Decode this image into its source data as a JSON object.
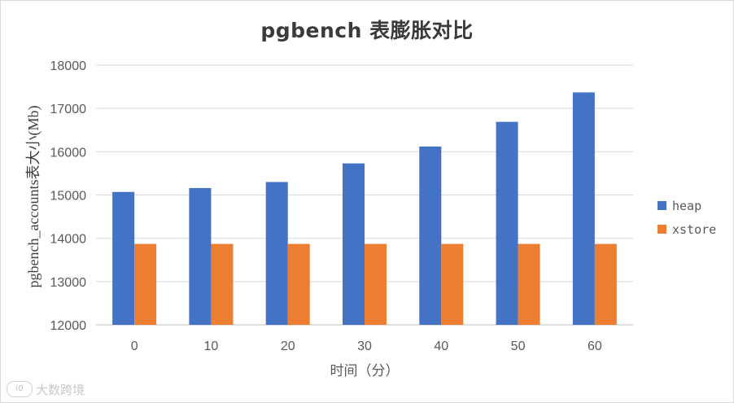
{
  "chart_data": {
    "type": "bar",
    "title": "pgbench  表膨胀对比",
    "xlabel": "时间（分）",
    "ylabel": "pgbench_accounts表大小(Mb)",
    "categories": [
      "0",
      "10",
      "20",
      "30",
      "40",
      "50",
      "60"
    ],
    "ylim": [
      12000,
      18000
    ],
    "yticks": [
      12000,
      13000,
      14000,
      15000,
      16000,
      17000,
      18000
    ],
    "grid": true,
    "legend_position": "right",
    "series": [
      {
        "name": "heap",
        "color": "#4472c4",
        "values": [
          15070,
          15160,
          15300,
          15730,
          16120,
          16690,
          17370
        ]
      },
      {
        "name": "xstore",
        "color": "#ed7d31",
        "values": [
          13870,
          13870,
          13870,
          13870,
          13870,
          13870,
          13870
        ]
      }
    ]
  },
  "watermark": {
    "logo_text": "i0",
    "text": "大数跨境"
  }
}
